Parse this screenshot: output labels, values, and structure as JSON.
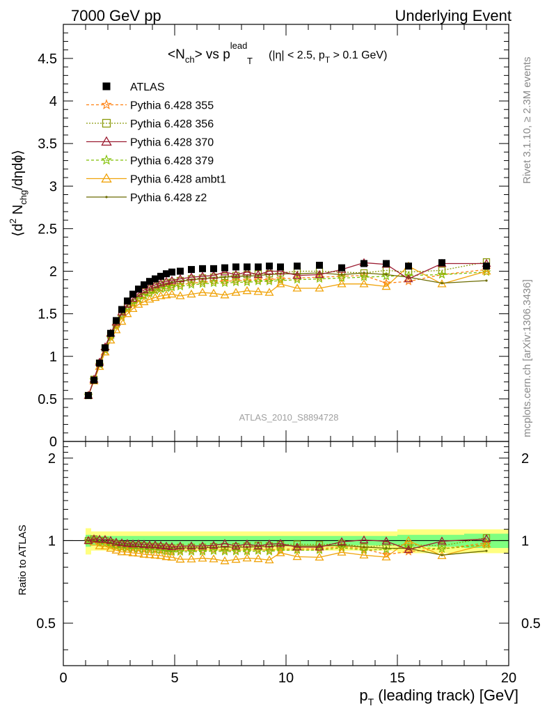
{
  "header": {
    "left": "7000 GeV pp",
    "right": "Underlying Event"
  },
  "side_labels": {
    "rivet": "Rivet 3.1.10, ≥ 2.3M events",
    "mcplots": "mcplots.cern.ch [arXiv:1306.3436]"
  },
  "watermark": "ATLAS_2010_S8894728",
  "chart_data": [
    {
      "type": "scatter",
      "title": {
        "main": "<N",
        "sub1": "ch",
        "mid": "> vs p",
        "sup": "lead",
        "sub2": "T",
        "tail": "(|η| < 2.5, p",
        "sub3": "T",
        "end": " > 0.1 GeV)"
      },
      "ylabel": {
        "a": "⟨d",
        "sup": "2",
        "b": " N",
        "sub": "chg",
        "c": "/dηdϕ⟩"
      },
      "xlim": [
        0,
        20
      ],
      "ylim": [
        0,
        4.9
      ],
      "yticks": [
        "0",
        "0.5",
        "1",
        "1.5",
        "2",
        "2.5",
        "3",
        "3.5",
        "4",
        "4.5"
      ],
      "x": [
        1.125,
        1.375,
        1.625,
        1.875,
        2.125,
        2.375,
        2.625,
        2.875,
        3.125,
        3.375,
        3.625,
        3.875,
        4.125,
        4.375,
        4.625,
        4.875,
        5.25,
        5.75,
        6.25,
        6.75,
        7.25,
        7.75,
        8.25,
        8.75,
        9.25,
        9.75,
        10.5,
        11.5,
        12.5,
        13.5,
        14.5,
        15.5,
        17.0,
        19.0
      ],
      "series": [
        {
          "name": "ATLAS",
          "color": "#000000",
          "marker": "square",
          "dash": "none",
          "values": [
            0.54,
            0.72,
            0.92,
            1.1,
            1.27,
            1.42,
            1.55,
            1.65,
            1.73,
            1.79,
            1.84,
            1.88,
            1.91,
            1.94,
            1.97,
            1.99,
            2.0,
            2.02,
            2.03,
            2.03,
            2.04,
            2.05,
            2.05,
            2.05,
            2.06,
            2.05,
            2.06,
            2.07,
            2.04,
            2.09,
            2.09,
            2.06,
            2.1,
            2.06
          ]
        },
        {
          "name": "Pythia 6.428 355",
          "color": "#ff7f0e",
          "marker": "star",
          "dash": "4,3",
          "values": [
            0.54,
            0.72,
            0.9,
            1.07,
            1.23,
            1.36,
            1.47,
            1.56,
            1.63,
            1.68,
            1.72,
            1.76,
            1.78,
            1.8,
            1.82,
            1.83,
            1.84,
            1.86,
            1.87,
            1.88,
            1.88,
            1.89,
            1.89,
            1.9,
            1.9,
            1.91,
            1.92,
            1.93,
            1.94,
            1.95,
            1.86,
            1.88,
            1.96,
            2.02
          ]
        },
        {
          "name": "Pythia 6.428 356",
          "color": "#8a9a0a",
          "marker": "opensquare",
          "dash": "2,2",
          "values": [
            0.54,
            0.73,
            0.92,
            1.1,
            1.25,
            1.38,
            1.5,
            1.59,
            1.66,
            1.72,
            1.76,
            1.79,
            1.82,
            1.84,
            1.86,
            1.87,
            1.89,
            1.91,
            1.92,
            1.93,
            1.94,
            1.95,
            1.96,
            1.97,
            1.97,
            1.98,
            2.0,
            2.0,
            1.99,
            1.98,
            2.01,
            1.99,
            2.01,
            2.11
          ]
        },
        {
          "name": "Pythia 6.428 370",
          "color": "#9b1c31",
          "marker": "opentriangle",
          "dash": "none",
          "values": [
            0.54,
            0.73,
            0.93,
            1.11,
            1.27,
            1.4,
            1.52,
            1.61,
            1.68,
            1.74,
            1.78,
            1.81,
            1.84,
            1.86,
            1.88,
            1.89,
            1.91,
            1.93,
            1.94,
            1.95,
            1.99,
            1.96,
            1.99,
            1.96,
            2.0,
            2.0,
            1.95,
            1.96,
            2.02,
            2.1,
            2.08,
            1.91,
            2.09,
            2.09
          ]
        },
        {
          "name": "Pythia 6.428 379",
          "color": "#7fbf00",
          "marker": "star",
          "dash": "4,3",
          "values": [
            0.54,
            0.72,
            0.9,
            1.07,
            1.22,
            1.35,
            1.46,
            1.55,
            1.62,
            1.67,
            1.71,
            1.74,
            1.77,
            1.79,
            1.8,
            1.81,
            1.82,
            1.84,
            1.85,
            1.86,
            1.86,
            1.87,
            1.87,
            1.88,
            1.88,
            1.89,
            1.9,
            1.91,
            1.92,
            1.93,
            1.94,
            1.95,
            1.96,
            1.99
          ]
        },
        {
          "name": "Pythia 6.428 ambt1",
          "color": "#f0a30a",
          "marker": "opentriangle",
          "dash": "none",
          "values": [
            0.54,
            0.71,
            0.88,
            1.05,
            1.19,
            1.31,
            1.41,
            1.5,
            1.56,
            1.61,
            1.64,
            1.67,
            1.69,
            1.71,
            1.72,
            1.73,
            1.71,
            1.73,
            1.75,
            1.74,
            1.72,
            1.75,
            1.77,
            1.76,
            1.75,
            1.85,
            1.8,
            1.8,
            1.85,
            1.85,
            1.82,
            2.06,
            1.85,
            2.0
          ]
        },
        {
          "name": "Pythia 6.428 z2",
          "color": "#6b6b00",
          "marker": "dot",
          "dash": "none",
          "values": [
            0.54,
            0.72,
            0.91,
            1.09,
            1.25,
            1.38,
            1.5,
            1.59,
            1.66,
            1.71,
            1.75,
            1.79,
            1.81,
            1.84,
            1.85,
            1.87,
            1.88,
            1.9,
            1.91,
            1.92,
            1.93,
            1.94,
            1.94,
            1.95,
            1.96,
            1.97,
            1.97,
            1.98,
            1.96,
            1.98,
            1.96,
            1.93,
            1.86,
            1.89
          ]
        }
      ]
    },
    {
      "type": "line",
      "ylabel": "Ratio to ATLAS",
      "xlabel": {
        "a": "p",
        "sub": "T",
        "b": " (leading track) [GeV]"
      },
      "xlim": [
        0,
        20
      ],
      "ylim": [
        0.35,
        2.3
      ],
      "yticks_left": [
        "0.5",
        "1",
        "2"
      ],
      "yticks_right": [
        "0.5",
        "1",
        "2"
      ],
      "xticks": [
        "0",
        "5",
        "10",
        "15",
        "20"
      ],
      "note": "ratio of each Pythia series to ATLAS; green band = stat. uncertainty, yellow band = total uncertainty",
      "band_green_halfwidth": [
        0.05,
        0.04,
        0.04,
        0.04,
        0.04,
        0.04,
        0.04,
        0.04,
        0.04,
        0.04,
        0.04,
        0.04,
        0.04,
        0.04,
        0.04,
        0.04,
        0.04,
        0.04,
        0.04,
        0.04,
        0.04,
        0.04,
        0.04,
        0.04,
        0.04,
        0.04,
        0.04,
        0.04,
        0.04,
        0.04,
        0.04,
        0.05,
        0.05,
        0.06
      ],
      "band_yellow_halfwidth": [
        0.11,
        0.08,
        0.08,
        0.08,
        0.08,
        0.08,
        0.08,
        0.08,
        0.08,
        0.08,
        0.08,
        0.08,
        0.08,
        0.08,
        0.08,
        0.08,
        0.08,
        0.08,
        0.08,
        0.08,
        0.08,
        0.08,
        0.08,
        0.08,
        0.08,
        0.08,
        0.08,
        0.08,
        0.08,
        0.08,
        0.08,
        0.1,
        0.1,
        0.1
      ]
    }
  ]
}
